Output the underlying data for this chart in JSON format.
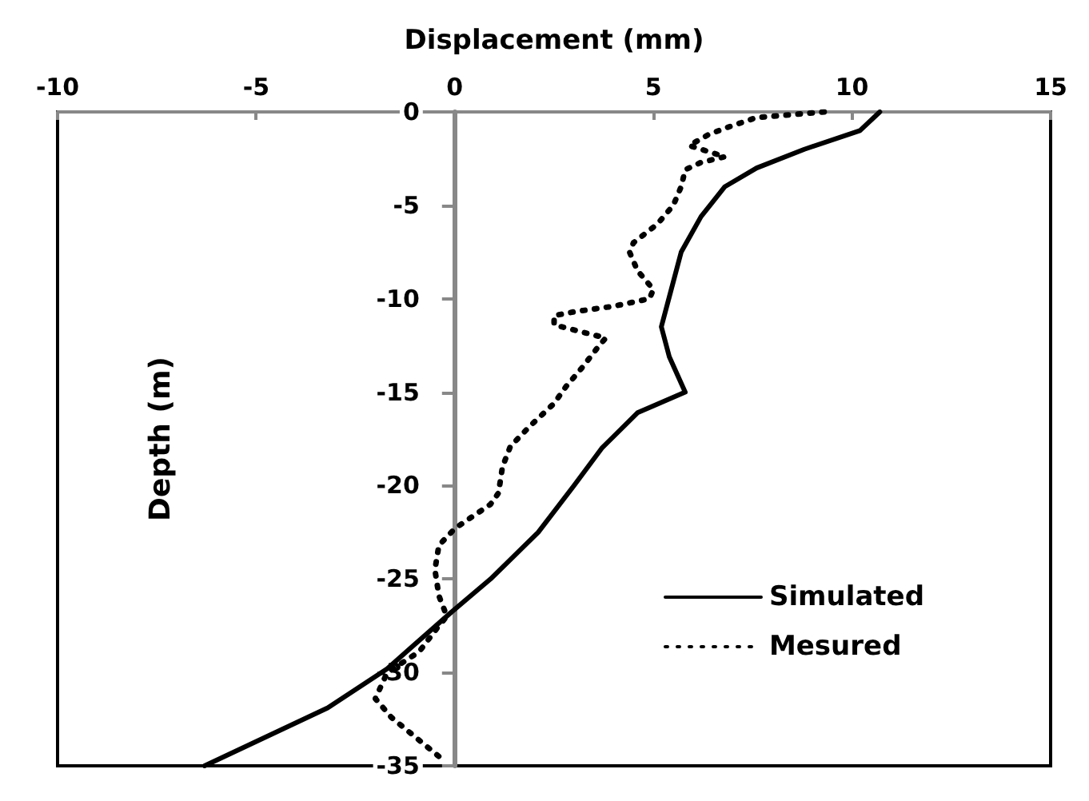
{
  "chart_data": {
    "type": "line",
    "xlabel": "Displacement (mm)",
    "ylabel": "Depth (m)",
    "xlim": [
      -10,
      15
    ],
    "xticks": [
      -10,
      -5,
      0,
      5,
      10,
      15
    ],
    "ylim": [
      -35,
      0
    ],
    "yticks": [
      -35,
      -30,
      -25,
      -20,
      -15,
      -10,
      -5,
      0
    ],
    "grid": false,
    "legend": "bottom right",
    "marker": "none",
    "series": [
      {
        "name": "Simulated",
        "color": "#000000",
        "line_style": "solid",
        "x": [
          10.7,
          10.2,
          8.8,
          7.6,
          6.8,
          6.2,
          5.7,
          5.4,
          5.2,
          5.4,
          5.8,
          4.6,
          3.7,
          3.0,
          2.1,
          0.9,
          -0.1,
          -1.7,
          -3.2,
          -6.3
        ],
        "values": [
          0,
          -1,
          -2,
          -3,
          -4,
          -5.6,
          -7.5,
          -9.9,
          -11.5,
          -13.1,
          -15,
          -16.1,
          -18,
          -20,
          -22.5,
          -25,
          -26.8,
          -29.8,
          -31.9,
          -35
        ]
      },
      {
        "name": "Mesured",
        "color": "#000000",
        "line_style": "dotted",
        "x": [
          9.3,
          7.6,
          6.9,
          6.4,
          5.9,
          6.8,
          6.2,
          5.8,
          5.7,
          5.5,
          5.1,
          4.5,
          4.4,
          4.6,
          5.0,
          4.9,
          4.0,
          3.0,
          2.5,
          2.5,
          3.8,
          3.6,
          3.2,
          2.8,
          2.5,
          1.9,
          1.4,
          1.2,
          1.1,
          0.9,
          0.0,
          -0.4,
          -0.5,
          -0.4,
          -0.2,
          -0.4,
          -0.9,
          -1.7,
          -2.0,
          -1.6,
          -0.8,
          -0.4
        ],
        "values": [
          0,
          -0.3,
          -0.8,
          -1.2,
          -1.8,
          -2.4,
          -2.7,
          -3.1,
          -4,
          -5,
          -6,
          -7,
          -7.5,
          -8.5,
          -9.5,
          -10,
          -10.4,
          -10.7,
          -10.9,
          -11.4,
          -12.1,
          -12.6,
          -13.7,
          -14.7,
          -15.6,
          -16.8,
          -17.9,
          -19.0,
          -20.4,
          -21.0,
          -22.3,
          -23.2,
          -24.5,
          -25.9,
          -27.0,
          -27.5,
          -28.9,
          -30.0,
          -31.4,
          -32.4,
          -33.8,
          -34.5
        ]
      }
    ]
  }
}
